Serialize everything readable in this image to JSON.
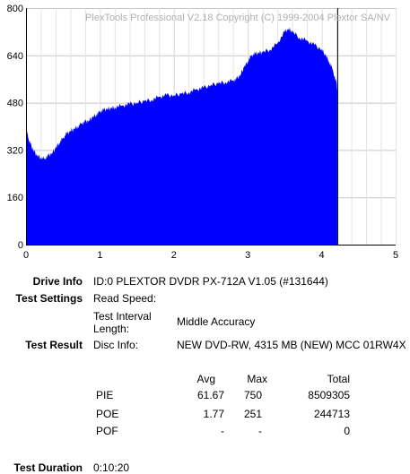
{
  "chart_data": {
    "type": "area",
    "watermark": "PlexTools Professional V2.18 Copyright (C) 1999-2004 Plextor SA/NV",
    "xlim": [
      0,
      5
    ],
    "ylim": [
      0,
      800
    ],
    "x_ticks": [
      0,
      1,
      2,
      3,
      4,
      5
    ],
    "y_ticks": [
      0,
      160,
      320,
      480,
      640,
      800
    ],
    "grid": true,
    "fill_color": "#0000ff",
    "marker_x": 4.21,
    "marker_color": "#000000",
    "x": [
      0,
      0.01,
      0.03,
      0.06,
      0.1,
      0.15,
      0.2,
      0.25,
      0.3,
      0.35,
      0.4,
      0.45,
      0.5,
      0.55,
      0.6,
      0.65,
      0.7,
      0.75,
      0.8,
      0.85,
      0.9,
      0.95,
      1.0,
      1.05,
      1.1,
      1.15,
      1.2,
      1.3,
      1.4,
      1.5,
      1.6,
      1.7,
      1.8,
      1.9,
      2.0,
      2.1,
      2.2,
      2.3,
      2.4,
      2.5,
      2.6,
      2.7,
      2.8,
      2.85,
      2.9,
      2.95,
      3.0,
      3.05,
      3.1,
      3.15,
      3.2,
      3.3,
      3.4,
      3.5,
      3.55,
      3.6,
      3.7,
      3.8,
      3.9,
      4.0,
      4.05,
      4.1,
      4.15,
      4.2,
      4.21
    ],
    "values": [
      430,
      390,
      360,
      340,
      320,
      300,
      295,
      290,
      300,
      310,
      325,
      345,
      360,
      375,
      385,
      390,
      400,
      410,
      415,
      420,
      430,
      440,
      450,
      455,
      460,
      460,
      465,
      470,
      475,
      480,
      485,
      490,
      500,
      505,
      505,
      510,
      515,
      525,
      530,
      540,
      545,
      550,
      555,
      560,
      575,
      600,
      620,
      640,
      645,
      650,
      650,
      660,
      680,
      720,
      730,
      720,
      700,
      690,
      675,
      660,
      640,
      620,
      590,
      545,
      520
    ]
  },
  "info": {
    "drive_info_label": "Drive Info",
    "drive_info_value": "ID:0 PLEXTOR DVDR PX-712A V1.05 (#131644)",
    "test_settings_label": "Test Settings",
    "read_speed_label": "Read Speed:",
    "read_speed_value": "",
    "test_interval_label_1": "Test Interval",
    "test_interval_label_2": "Length:",
    "test_interval_value": "Middle Accuracy",
    "test_result_label": "Test Result",
    "disc_info_label": "Disc Info:",
    "disc_info_value": "NEW DVD-RW, 4315 MB (NEW) MCC 01RW4X",
    "test_duration_label": "Test Duration",
    "test_duration_value": "0:10:20"
  },
  "results": {
    "headers": {
      "avg": "Avg",
      "max": "Max",
      "total": "Total"
    },
    "rows": [
      {
        "name": "PIE",
        "avg": "61.67",
        "max": "750",
        "total": "8509305"
      },
      {
        "name": "POE",
        "avg": "1.77",
        "max": "251",
        "total": "244713"
      },
      {
        "name": "POF",
        "avg": "-",
        "max": "-",
        "total": "0"
      }
    ]
  }
}
